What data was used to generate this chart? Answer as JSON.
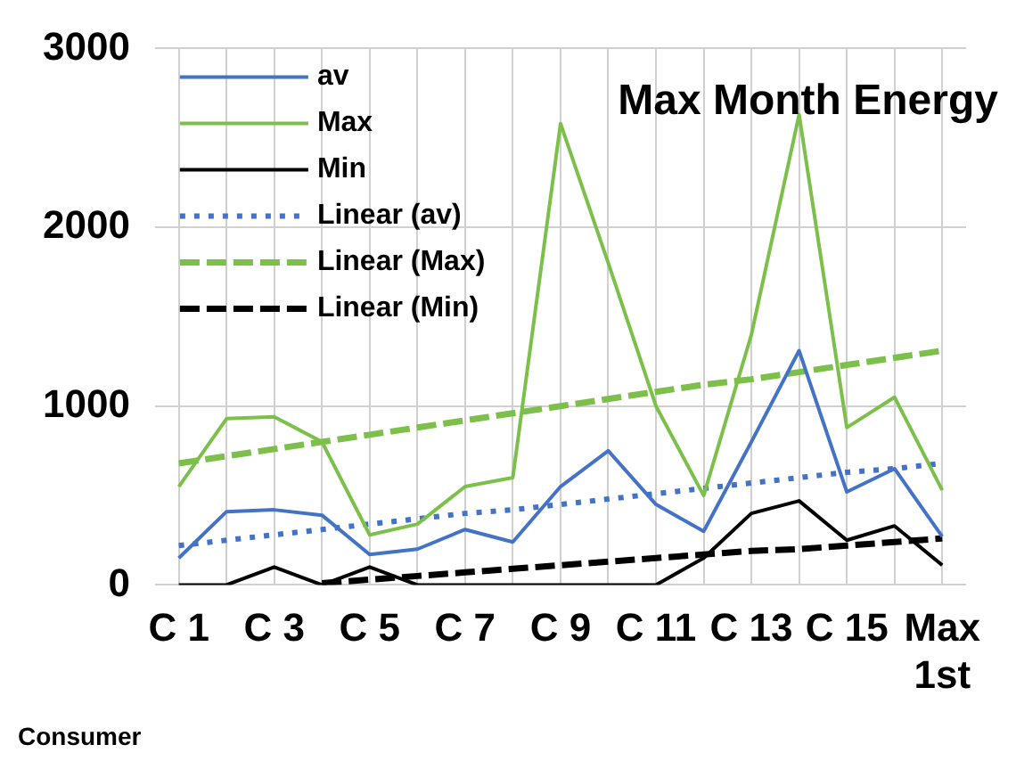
{
  "chart_data": {
    "type": "line",
    "title": "Max Month Energy",
    "xlabel": "Consumer",
    "categories": [
      "C 1",
      null,
      "C 3",
      null,
      "C 5",
      null,
      "C 7",
      null,
      "C 9",
      null,
      "C 11",
      null,
      "C 13",
      null,
      "C 15",
      null,
      "Max 1st"
    ],
    "ylim": [
      0,
      3000
    ],
    "yticks": [
      0,
      1000,
      2000,
      3000
    ],
    "grid": true,
    "legend": "top left",
    "marker": "none",
    "series": [
      {
        "name": "av",
        "color": "#4472c4",
        "line_style": "solid",
        "values": [
          150,
          410,
          420,
          390,
          170,
          200,
          310,
          240,
          550,
          750,
          450,
          300,
          800,
          1310,
          520,
          650,
          270
        ]
      },
      {
        "name": "Max",
        "color": "#7cc04b",
        "line_style": "solid",
        "values": [
          550,
          930,
          940,
          800,
          280,
          340,
          550,
          600,
          2580,
          1800,
          1000,
          500,
          1400,
          2630,
          880,
          1050,
          530
        ]
      },
      {
        "name": "Min",
        "color": "#000000",
        "line_style": "solid",
        "values": [
          0,
          0,
          100,
          0,
          100,
          0,
          0,
          0,
          0,
          0,
          0,
          150,
          400,
          470,
          250,
          330,
          110
        ]
      },
      {
        "name": "Linear (av)",
        "color": "#4472c4",
        "line_style": "dotted",
        "values": [
          220,
          250,
          280,
          310,
          340,
          370,
          400,
          420,
          450,
          480,
          510,
          540,
          570,
          600,
          630,
          650,
          680
        ]
      },
      {
        "name": "Linear (Max)",
        "color": "#7cc04b",
        "line_style": "dashed",
        "values": [
          680,
          720,
          760,
          800,
          840,
          880,
          920,
          960,
          1000,
          1040,
          1080,
          1120,
          1150,
          1190,
          1230,
          1270,
          1310
        ]
      },
      {
        "name": "Linear (Min)",
        "color": "#000000",
        "line_style": "dashed",
        "values": [
          null,
          null,
          null,
          10,
          30,
          50,
          70,
          90,
          110,
          130,
          150,
          170,
          190,
          200,
          220,
          240,
          260
        ]
      }
    ]
  }
}
